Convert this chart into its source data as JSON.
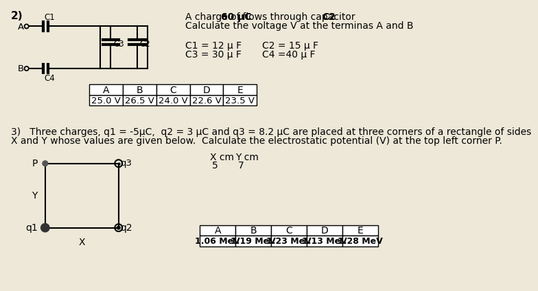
{
  "bg_color": "#ede8d8",
  "problem2_number": "2)",
  "problem2_title_part1": "A charge of ",
  "problem2_title_bold": "60 μC",
  "problem2_title_part2": " flows through capacitor  ",
  "problem2_title_bold2": "C2",
  "problem2_subtitle": "Calculate the voltage V at the terminas A and B",
  "c1_label": "C1 = 12 μ F",
  "c3_label": "C3 = 30 μ F",
  "c2_label": "C2 = 15 μ F",
  "c4_label": "C4 =40 μ F",
  "table1_headers": [
    "A",
    "B",
    "C",
    "D",
    "E"
  ],
  "table1_values": [
    "25.0 V",
    "26.5 V",
    "24.0 V",
    "22.6 V",
    "23.5 V"
  ],
  "problem3_text1": "3)   Three charges, q1 = -5μC,  q2 = 3 μC and q3 = 8.2 μC are placed at three corners of a rectangle of sides",
  "problem3_text2": "X and Y whose values are given below.  Calculate the electrostatic potential (V) at the top left corner P.",
  "xcm_label": "X cm",
  "ycm_label": "Y cm",
  "x_val": "5",
  "y_val": "7",
  "table2_headers": [
    "A",
    "B",
    "C",
    "D",
    "E"
  ],
  "table2_values": [
    "1.06 MeV",
    "1.19 MeV",
    "1.23 MeV",
    "1.13 MeV",
    "1.28 MeV"
  ]
}
